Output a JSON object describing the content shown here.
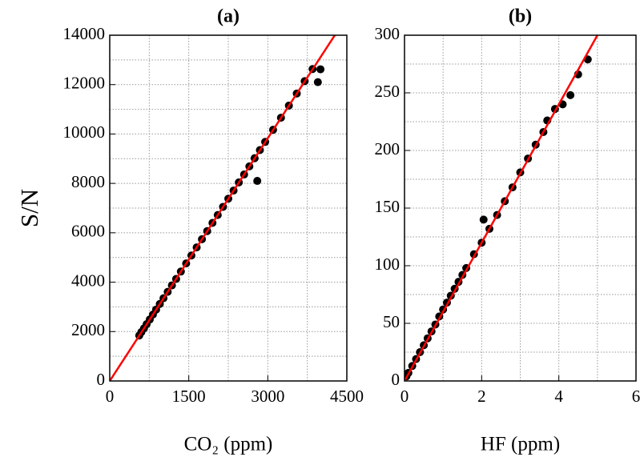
{
  "chart_data": [
    {
      "type": "scatter",
      "title": "(a)",
      "xlabel": "CO₂  (ppm)",
      "ylabel": "S/N",
      "xlim": [
        0,
        4500
      ],
      "xticks": [
        0,
        1500,
        3000,
        4500
      ],
      "minor_xticks": [
        750,
        2250,
        3750
      ],
      "ylim": [
        0,
        14000
      ],
      "yticks": [
        0,
        2000,
        4000,
        6000,
        8000,
        10000,
        12000,
        14000
      ],
      "minor_yticks": [
        1000,
        3000,
        5000,
        7000,
        9000,
        11000,
        13000
      ],
      "grid": true,
      "series": [
        {
          "color": "#000000",
          "style": "points",
          "x": [
            560,
            600,
            650,
            700,
            760,
            820,
            880,
            950,
            1020,
            1100,
            1180,
            1260,
            1350,
            1450,
            1550,
            1650,
            1750,
            1850,
            1950,
            2050,
            2150,
            2250,
            2350,
            2450,
            2550,
            2650,
            2750,
            2800,
            2850,
            2950,
            3100,
            3250,
            3400,
            3550,
            3700,
            3850,
            3950,
            4000
          ],
          "values": [
            1840,
            1980,
            2130,
            2300,
            2490,
            2690,
            2890,
            3120,
            3350,
            3610,
            3870,
            4130,
            4430,
            4760,
            5080,
            5410,
            5740,
            6070,
            6400,
            6720,
            7050,
            7380,
            7710,
            8040,
            8360,
            8690,
            9020,
            8100,
            9350,
            9680,
            10170,
            10660,
            11150,
            11640,
            12140,
            12630,
            12100,
            12620
          ]
        },
        {
          "color": "#ff0000",
          "style": "line",
          "x": [
            0,
            4272
          ],
          "values": [
            0,
            14000
          ]
        }
      ]
    },
    {
      "type": "scatter",
      "title": "(b)",
      "xlabel": "HF  (ppm)",
      "xlim": [
        0,
        6
      ],
      "xticks": [
        0,
        2,
        4,
        6
      ],
      "minor_xticks": [
        1,
        3,
        5
      ],
      "ylim": [
        0,
        300
      ],
      "yticks": [
        0,
        50,
        100,
        150,
        200,
        250,
        300
      ],
      "minor_yticks": [
        25,
        75,
        125,
        175,
        225,
        275
      ],
      "grid": true,
      "series": [
        {
          "color": "#000000",
          "style": "points",
          "x": [
            0.05,
            0.1,
            0.2,
            0.3,
            0.4,
            0.5,
            0.6,
            0.7,
            0.8,
            0.9,
            1.0,
            1.1,
            1.2,
            1.3,
            1.4,
            1.5,
            1.6,
            1.8,
            2.0,
            2.05,
            2.2,
            2.4,
            2.6,
            2.8,
            3.0,
            3.2,
            3.4,
            3.6,
            3.7,
            3.9,
            4.1,
            4.3,
            4.5,
            4.75
          ],
          "values": [
            4,
            7,
            13,
            19,
            25,
            31,
            37,
            43,
            49,
            56,
            62,
            68,
            74,
            80,
            86,
            92,
            98,
            110,
            120,
            140,
            132,
            144,
            156,
            168,
            181,
            193,
            205,
            216,
            226,
            236,
            240,
            248,
            266,
            279
          ]
        },
        {
          "color": "#ff0000",
          "style": "line",
          "x": [
            0,
            5
          ],
          "values": [
            0,
            300
          ]
        }
      ]
    }
  ]
}
